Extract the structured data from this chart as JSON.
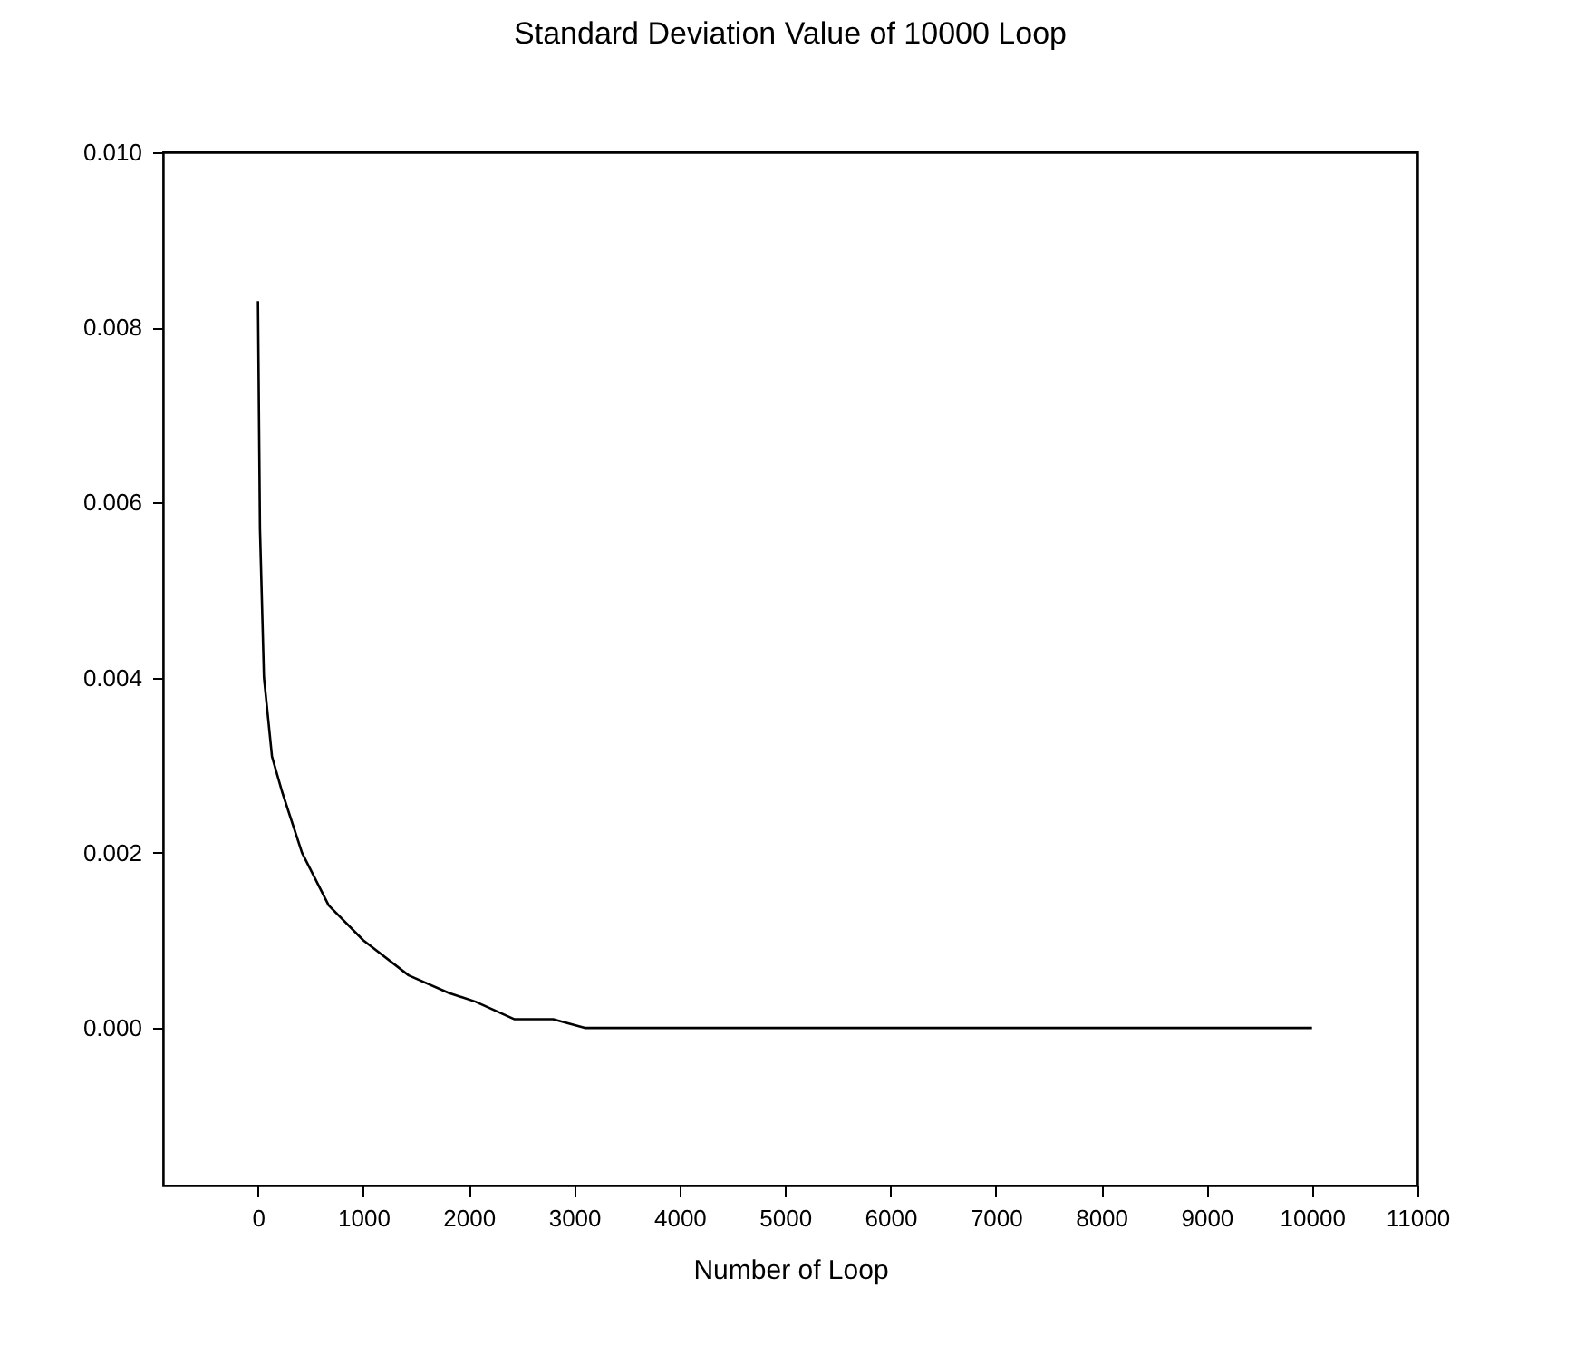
{
  "chart_data": {
    "type": "line",
    "title": "Standard Deviation Value of 10000 Loop",
    "xlabel": "Number of Loop",
    "xlim": [
      -900,
      11000
    ],
    "xticks": [
      0,
      1000,
      2000,
      3000,
      4000,
      5000,
      6000,
      7000,
      8000,
      9000,
      10000,
      11000
    ],
    "ylim": [
      -0.0018,
      0.01
    ],
    "yticks": [
      {
        "value": 0,
        "label": "0.000"
      },
      {
        "value": 0.002,
        "label": "0.002"
      },
      {
        "value": 0.004,
        "label": "0.004"
      },
      {
        "value": 0.006,
        "label": "0.006"
      },
      {
        "value": 0.008,
        "label": "0.008"
      },
      {
        "value": 0.01,
        "label": "0.010"
      }
    ],
    "grid": false,
    "series": [
      {
        "color": "#000000",
        "x": [
          0,
          19,
          57,
          133,
          228,
          418,
          671,
          1000,
          1430,
          1810,
          2063,
          2430,
          2800,
          3100,
          4000,
          5000,
          6000,
          7000,
          8000,
          9000,
          10000
        ],
        "values": [
          0.0083,
          0.0057,
          0.004,
          0.0031,
          0.0027,
          0.002,
          0.0014,
          0.001,
          0.0006,
          0.0004,
          0.0003,
          0.0001,
          0.0001,
          0,
          0,
          0,
          0,
          0,
          0,
          0,
          0
        ]
      }
    ]
  }
}
